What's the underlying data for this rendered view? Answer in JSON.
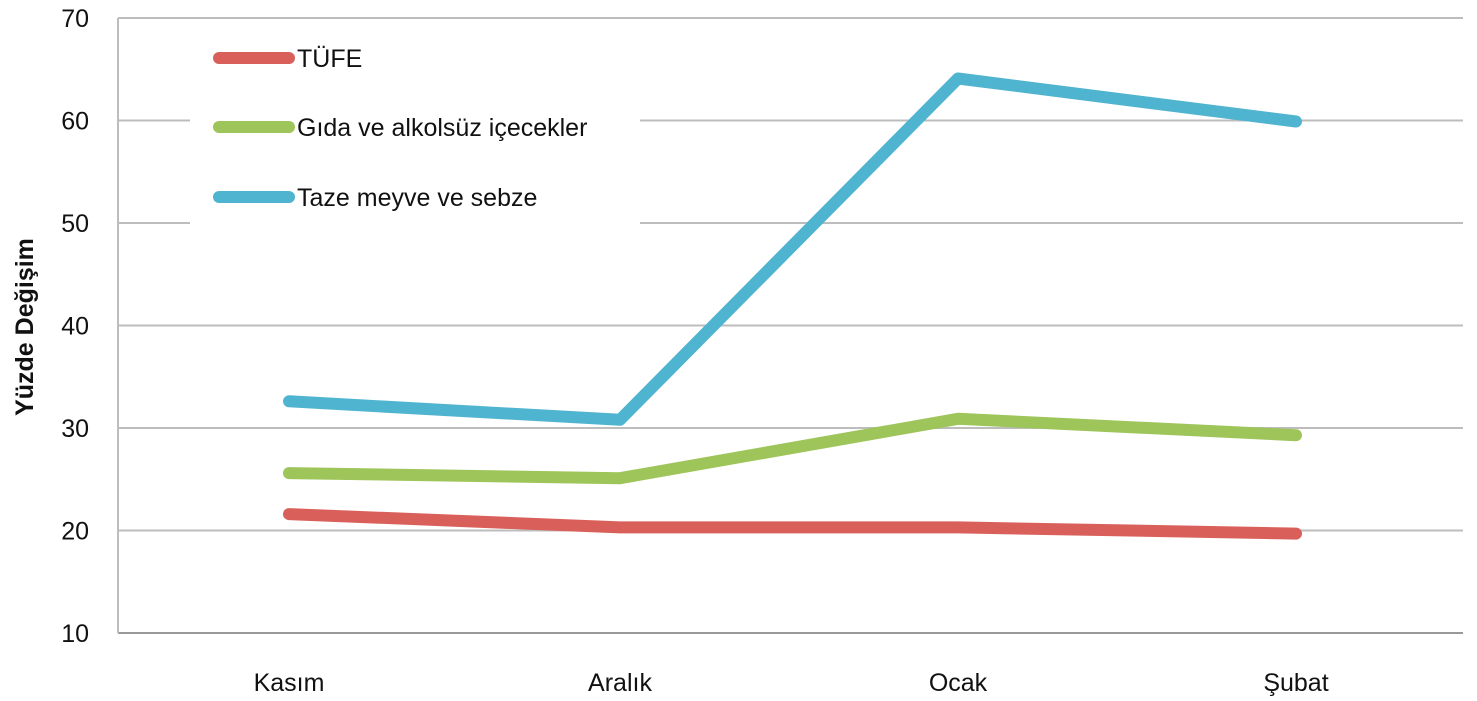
{
  "chart_data": {
    "type": "line",
    "ylabel": "Yüzde Değişim",
    "ylim": [
      10,
      70
    ],
    "yticks": [
      10,
      20,
      30,
      40,
      50,
      60,
      70
    ],
    "grid": true,
    "legend_position": "top-left",
    "categories": [
      "Kasım",
      "Aralık",
      "Ocak",
      "Şubat"
    ],
    "series": [
      {
        "name": "TÜFE",
        "color": "#d9605a",
        "values": [
          21.6,
          20.3,
          20.3,
          19.7
        ]
      },
      {
        "name": "Gıda ve alkolsüz içecekler",
        "color": "#9ec559",
        "values": [
          25.6,
          25.1,
          30.9,
          29.3
        ]
      },
      {
        "name": "Taze meyve ve sebze",
        "color": "#4fb4d0",
        "values": [
          32.6,
          30.8,
          64.1,
          59.9
        ]
      }
    ]
  }
}
